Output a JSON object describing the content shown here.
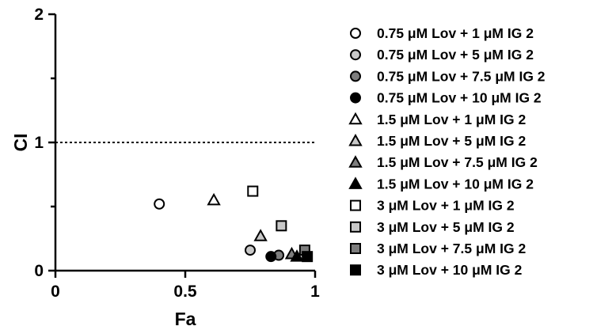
{
  "chart_data": {
    "type": "scatter",
    "title": "",
    "xlabel": "Fa",
    "ylabel": "CI",
    "xlim": [
      0,
      1
    ],
    "ylim": [
      0,
      2
    ],
    "x_ticks": [
      "0",
      "0.5",
      "1"
    ],
    "y_ticks": [
      "0",
      "1",
      "2"
    ],
    "reference_line": {
      "y": 1,
      "style": "dotted"
    },
    "legend_position": "right",
    "series": [
      {
        "name": "0.75 μM Lov + 1 μM IG 2",
        "marker": "circle",
        "fill": "#ffffff",
        "points": [
          {
            "x": 0.4,
            "y": 0.52
          }
        ]
      },
      {
        "name": "0.75 μM Lov + 5 μM IG 2",
        "marker": "circle",
        "fill": "#c8c8c8",
        "points": [
          {
            "x": 0.75,
            "y": 0.16
          }
        ]
      },
      {
        "name": "0.75 μM Lov + 7.5 μM IG 2",
        "marker": "circle",
        "fill": "#7d7d7d",
        "points": [
          {
            "x": 0.86,
            "y": 0.12
          }
        ]
      },
      {
        "name": "0.75 μM Lov + 10 μM IG 2",
        "marker": "circle",
        "fill": "#000000",
        "points": [
          {
            "x": 0.83,
            "y": 0.11
          }
        ]
      },
      {
        "name": "1.5 μM Lov + 1 μM IG 2",
        "marker": "triangle",
        "fill": "#ffffff",
        "points": [
          {
            "x": 0.61,
            "y": 0.55
          }
        ]
      },
      {
        "name": "1.5 μM Lov + 5 μM IG 2",
        "marker": "triangle",
        "fill": "#c8c8c8",
        "points": [
          {
            "x": 0.79,
            "y": 0.27
          }
        ]
      },
      {
        "name": "1.5 μM Lov + 7.5 μM IG 2",
        "marker": "triangle",
        "fill": "#7d7d7d",
        "points": [
          {
            "x": 0.91,
            "y": 0.13
          }
        ]
      },
      {
        "name": "1.5 μM Lov + 10 μM IG 2",
        "marker": "triangle",
        "fill": "#000000",
        "points": [
          {
            "x": 0.93,
            "y": 0.11
          }
        ]
      },
      {
        "name": "3 μM Lov + 1 μM IG 2",
        "marker": "square",
        "fill": "#ffffff",
        "points": [
          {
            "x": 0.76,
            "y": 0.62
          }
        ]
      },
      {
        "name": "3 μM Lov + 5 μM IG 2",
        "marker": "square",
        "fill": "#c8c8c8",
        "points": [
          {
            "x": 0.87,
            "y": 0.35
          }
        ]
      },
      {
        "name": "3 μM Lov + 7.5 μM IG 2",
        "marker": "square",
        "fill": "#7d7d7d",
        "points": [
          {
            "x": 0.96,
            "y": 0.16
          }
        ]
      },
      {
        "name": "3 μM Lov + 10 μM IG 2",
        "marker": "square",
        "fill": "#000000",
        "points": [
          {
            "x": 0.97,
            "y": 0.11
          }
        ]
      }
    ]
  }
}
